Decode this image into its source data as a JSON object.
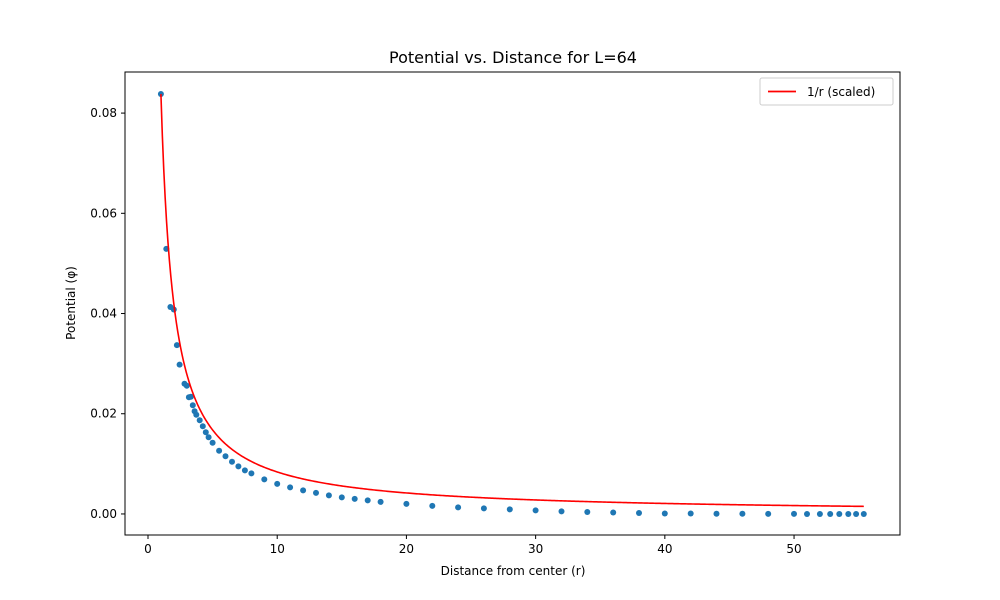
{
  "chart_data": {
    "type": "scatter",
    "title": "Potential vs. Distance for L=64",
    "xlabel": "Distance from center (r)",
    "ylabel": "Potential (φ)",
    "xlim": [
      -1.78,
      58.2
    ],
    "ylim": [
      -0.0042,
      0.0882
    ],
    "xticks": [
      0,
      10,
      20,
      30,
      40,
      50
    ],
    "xtick_labels": [
      "0",
      "10",
      "20",
      "30",
      "40",
      "50"
    ],
    "yticks": [
      0.0,
      0.02,
      0.04,
      0.06,
      0.08
    ],
    "ytick_labels": [
      "0.00",
      "0.02",
      "0.04",
      "0.06",
      "0.08"
    ],
    "grid": false,
    "legend": {
      "position": "top-right",
      "entries": [
        "1/r (scaled)"
      ]
    },
    "series": [
      {
        "kind": "scatter",
        "color": "#1f77b4",
        "points": [
          [
            1.0,
            0.0838
          ],
          [
            1.414,
            0.0529
          ],
          [
            1.732,
            0.0413
          ],
          [
            2.0,
            0.0408
          ],
          [
            2.236,
            0.0337
          ],
          [
            2.449,
            0.0298
          ],
          [
            2.828,
            0.026
          ],
          [
            3.0,
            0.0256
          ],
          [
            3.162,
            0.0233
          ],
          [
            3.317,
            0.0234
          ],
          [
            3.464,
            0.0217
          ],
          [
            3.606,
            0.0205
          ],
          [
            3.742,
            0.0198
          ],
          [
            4.0,
            0.0187
          ],
          [
            4.243,
            0.0175
          ],
          [
            4.472,
            0.0163
          ],
          [
            4.69,
            0.0153
          ],
          [
            5.0,
            0.0142
          ],
          [
            5.5,
            0.0126
          ],
          [
            6.0,
            0.0115
          ],
          [
            6.5,
            0.0104
          ],
          [
            7.0,
            0.0095
          ],
          [
            7.5,
            0.0087
          ],
          [
            8.0,
            0.0081
          ],
          [
            9.0,
            0.0069
          ],
          [
            10.0,
            0.006
          ],
          [
            11.0,
            0.0053
          ],
          [
            12.0,
            0.0047
          ],
          [
            13.0,
            0.0042
          ],
          [
            14.0,
            0.0037
          ],
          [
            15.0,
            0.0033
          ],
          [
            16.0,
            0.003
          ],
          [
            17.0,
            0.0027
          ],
          [
            18.0,
            0.0024
          ],
          [
            20.0,
            0.002
          ],
          [
            22.0,
            0.0016
          ],
          [
            24.0,
            0.0013
          ],
          [
            26.0,
            0.0011
          ],
          [
            28.0,
            0.0009
          ],
          [
            30.0,
            0.0007
          ],
          [
            32.0,
            0.0005
          ],
          [
            34.0,
            0.0004
          ],
          [
            36.0,
            0.0003
          ],
          [
            38.0,
            0.0002
          ],
          [
            40.0,
            0.0001
          ],
          [
            42.0,
            0.0001
          ],
          [
            44.0,
            5e-05
          ],
          [
            46.0,
            3e-05
          ],
          [
            48.0,
            2e-05
          ],
          [
            50.0,
            1e-05
          ],
          [
            51.0,
            0.0
          ],
          [
            52.0,
            0.0
          ],
          [
            52.8,
            0.0
          ],
          [
            53.5,
            0.0
          ],
          [
            54.2,
            0.0
          ],
          [
            54.8,
            0.0
          ],
          [
            55.4,
            0.0
          ]
        ]
      },
      {
        "name": "1/r (scaled)",
        "kind": "line",
        "color": "#ff0000",
        "function": "0.0838 / r",
        "x_range": [
          1.0,
          55.4
        ]
      }
    ]
  }
}
